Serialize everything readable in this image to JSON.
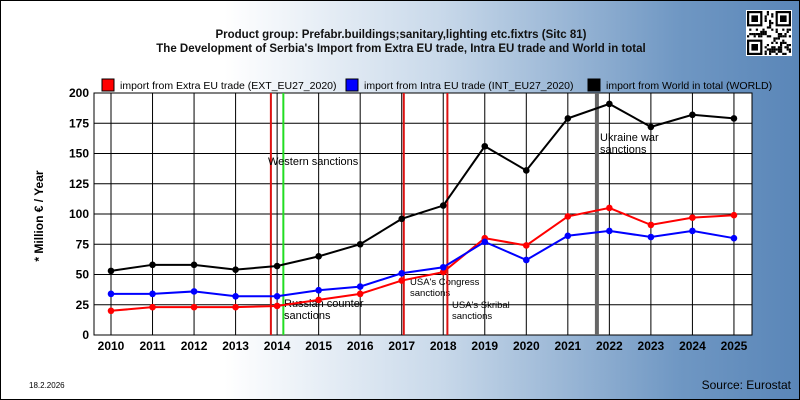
{
  "chart_data": {
    "type": "line",
    "title": "Product group: Prefabr.buildings;sanitary,lighting etc.fixtrs (Sitc 81)",
    "subtitle": "The Development of Serbia's Import from Extra EU trade, Intra EU trade and World in total",
    "ylabel": "* Million € / Year",
    "xlabel": "",
    "x": [
      "2010",
      "2011",
      "2012",
      "2013",
      "2014",
      "2015",
      "2016",
      "2017",
      "2018",
      "2019",
      "2020",
      "2021",
      "2022",
      "2023",
      "2024",
      "2025"
    ],
    "ylim": [
      0,
      200
    ],
    "yticks": [
      0,
      25,
      50,
      75,
      100,
      125,
      150,
      175,
      200
    ],
    "grid": true,
    "legend_position": "top",
    "series": [
      {
        "name": "import from Extra EU trade (EXT_EU27_2020)",
        "color": "#ff0000",
        "values": [
          20,
          23,
          23,
          23,
          24,
          29,
          34,
          45,
          52,
          80,
          74,
          98,
          105,
          91,
          97,
          99
        ]
      },
      {
        "name": "import from Intra EU trade (INT_EU27_2020)",
        "color": "#0000ff",
        "values": [
          34,
          34,
          36,
          32,
          32,
          37,
          40,
          51,
          56,
          77,
          62,
          82,
          86,
          81,
          86,
          80
        ]
      },
      {
        "name": "import from World in total (WORLD)",
        "color": "#000000",
        "values": [
          53,
          58,
          58,
          54,
          57,
          65,
          75,
          96,
          107,
          156,
          136,
          179,
          191,
          172,
          182,
          179
        ]
      }
    ],
    "events": [
      {
        "position": 2013.85,
        "color": "#dd1111",
        "label": ""
      },
      {
        "position": 2014.15,
        "color": "#22dd22",
        "label": "Western sanctions"
      },
      {
        "position": 2014.15,
        "color": "#22dd22",
        "label": "Russian counter sanctions"
      },
      {
        "position": 2017.05,
        "color": "#dd1111",
        "label": "USA's Congress sanctions"
      },
      {
        "position": 2018.1,
        "color": "#dd1111",
        "label": "USA's Skribal sanctions"
      },
      {
        "position": 2021.7,
        "color": "#666666",
        "label": "Ukraine war sanctions"
      }
    ]
  },
  "footer": {
    "date": "18.2.2026",
    "source": "Source: Eurostat"
  },
  "icons": {
    "qr": "qr-code-icon"
  }
}
